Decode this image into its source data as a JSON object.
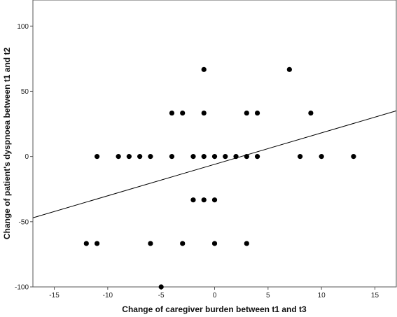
{
  "chart_data": {
    "type": "scatter",
    "title": "",
    "xlabel": "Change of caregiver burden between t1 and t3",
    "ylabel": "Change of patient's dyspnoea between t1 and t2",
    "xlim": [
      -17,
      17
    ],
    "ylim": [
      -100,
      120
    ],
    "x_ticks": [
      -15,
      -10,
      -5,
      0,
      5,
      10,
      15
    ],
    "y_ticks": [
      -100,
      -50,
      0,
      50,
      100
    ],
    "grid": false,
    "legend": "none",
    "colors": {
      "point": "#000000",
      "line": "#000000",
      "frame": "#555555"
    },
    "series": [
      {
        "x": [
          -1,
          7,
          -4,
          -3,
          -1,
          3,
          4,
          9,
          -11,
          -9,
          -8,
          -7,
          -6,
          -4,
          -2,
          -1,
          0,
          1,
          2,
          3,
          4,
          8,
          10,
          13,
          -2,
          -1,
          0,
          -12,
          -11,
          -6,
          -3,
          0,
          3,
          -5
        ],
        "y": [
          66.7,
          66.7,
          33.3,
          33.3,
          33.3,
          33.3,
          33.3,
          33.3,
          0,
          0,
          0,
          0,
          0,
          0,
          0,
          0,
          0,
          0,
          0,
          0,
          0,
          0,
          0,
          0,
          -33.3,
          -33.3,
          -33.3,
          -66.7,
          -66.7,
          -66.7,
          -66.7,
          -66.7,
          -66.7,
          -100
        ]
      }
    ],
    "fit_line": {
      "x": [
        -17,
        17
      ],
      "y": [
        -47,
        35
      ]
    }
  }
}
